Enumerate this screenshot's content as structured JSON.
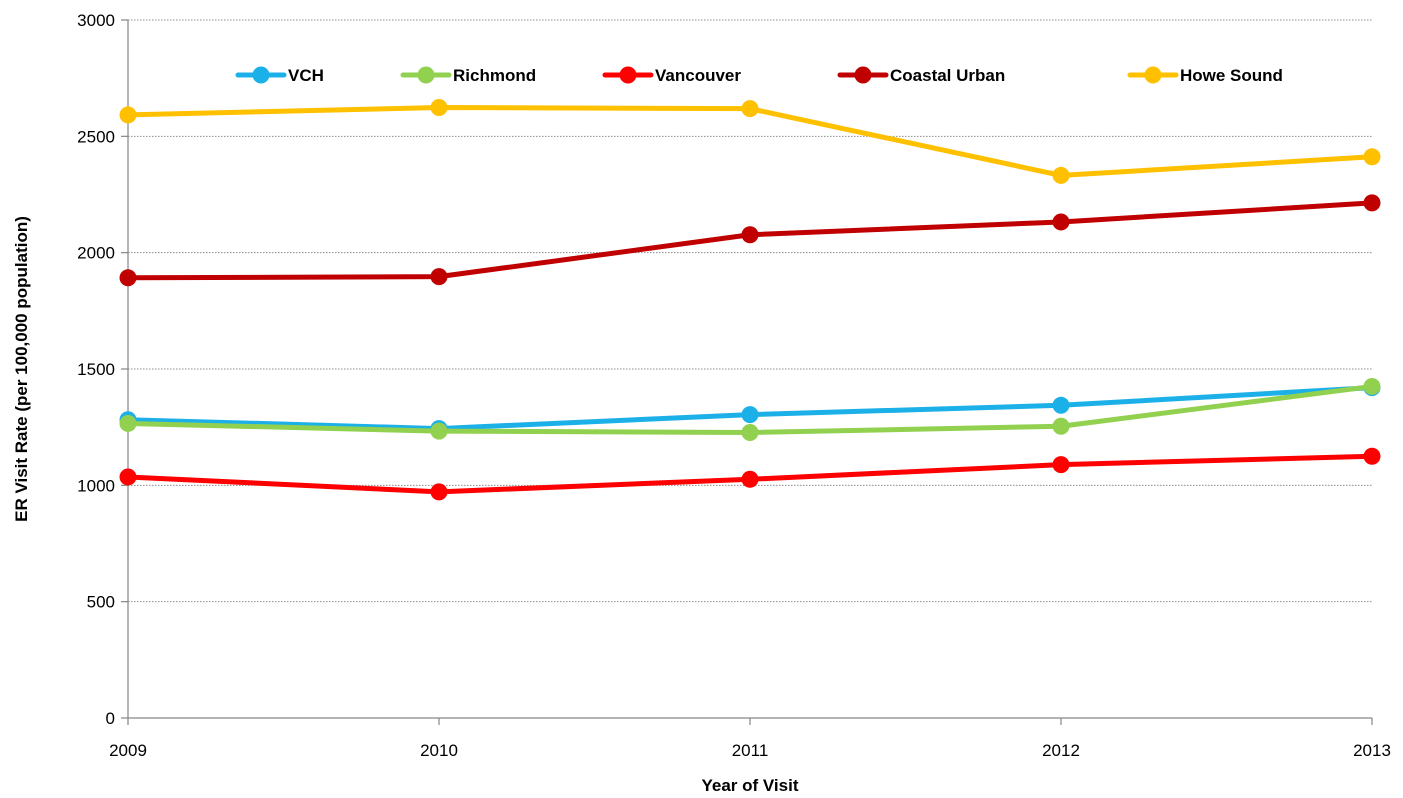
{
  "chart_data": {
    "type": "line",
    "title": "",
    "xlabel": "Year of Visit",
    "ylabel": "ER Visit Rate (per 100,000 population)",
    "x": [
      "2009",
      "2010",
      "2011",
      "2012",
      "2013"
    ],
    "ylim": [
      0,
      3000
    ],
    "yticks": [
      "0",
      "500",
      "1000",
      "1500",
      "2000",
      "2500",
      "3000"
    ],
    "grid": true,
    "legend_position": "top",
    "series": [
      {
        "name": "VCH",
        "color": "#1CB0E8",
        "values": [
          1282,
          1244,
          1304,
          1344,
          1420
        ]
      },
      {
        "name": "Richmond",
        "color": "#92D050",
        "values": [
          1266,
          1233,
          1227,
          1254,
          1425
        ]
      },
      {
        "name": "Vancouver",
        "color": "#FF0000",
        "values": [
          1036,
          972,
          1026,
          1089,
          1125
        ]
      },
      {
        "name": "Coastal Urban",
        "color": "#C00000",
        "values": [
          1892,
          1897,
          2077,
          2132,
          2214
        ]
      },
      {
        "name": "Howe Sound",
        "color": "#FFC000",
        "values": [
          2592,
          2624,
          2619,
          2332,
          2412
        ]
      }
    ]
  }
}
